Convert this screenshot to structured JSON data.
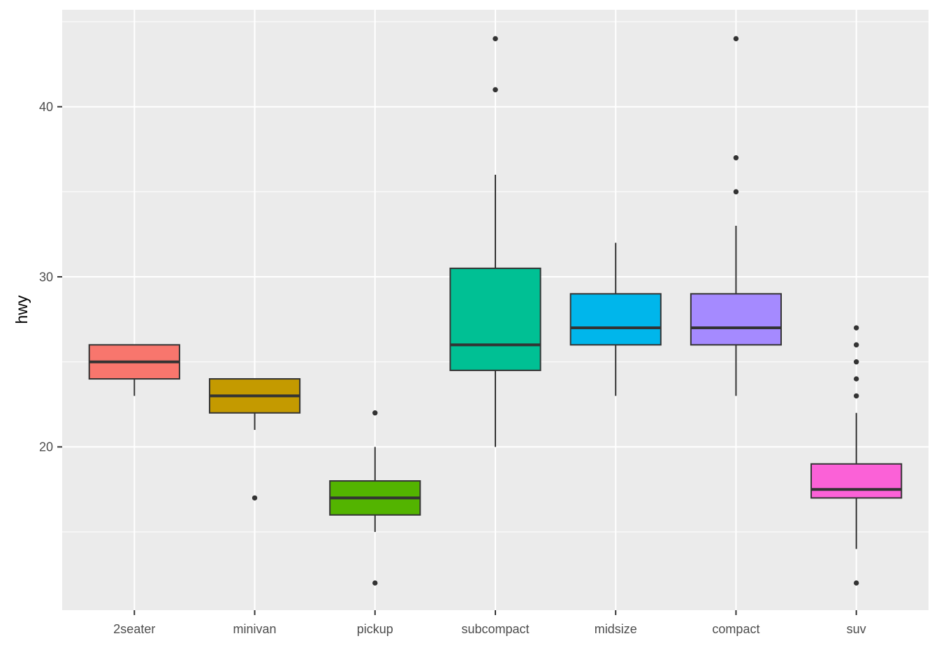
{
  "chart_data": {
    "type": "boxplot",
    "title": "",
    "ylabel": "hwy",
    "xlabel": "",
    "legend": "none",
    "grid": true,
    "panel_background": "#EBEBEB",
    "grid_color": "#FFFFFF",
    "box_border_color": "#333333",
    "outlier_color": "#333333",
    "tick_color": "#333333",
    "axis_text_color": "#4D4D4D",
    "axis_title_color": "#000000",
    "y_axis": {
      "ticks": [
        20,
        30,
        40
      ],
      "minor_ticks": [
        15,
        25,
        35,
        45
      ],
      "ylim": [
        10.4,
        45.7
      ]
    },
    "categories": [
      "2seater",
      "minivan",
      "pickup",
      "subcompact",
      "midsize",
      "compact",
      "suv"
    ],
    "series": [
      {
        "category": "2seater",
        "fill": "#F8766D",
        "whisker_low": 23,
        "q1": 24,
        "median": 25,
        "q3": 26,
        "whisker_high": 26,
        "outliers": []
      },
      {
        "category": "minivan",
        "fill": "#C49A00",
        "whisker_low": 21,
        "q1": 22,
        "median": 23,
        "q3": 24,
        "whisker_high": 24,
        "outliers": [
          17
        ]
      },
      {
        "category": "pickup",
        "fill": "#53B400",
        "whisker_low": 15,
        "q1": 16,
        "median": 17,
        "q3": 18,
        "whisker_high": 20,
        "outliers": [
          22,
          12
        ]
      },
      {
        "category": "subcompact",
        "fill": "#00C094",
        "whisker_low": 20,
        "q1": 24.5,
        "median": 26,
        "q3": 30.5,
        "whisker_high": 36,
        "outliers": [
          44,
          41
        ]
      },
      {
        "category": "midsize",
        "fill": "#00B6EB",
        "whisker_low": 23,
        "q1": 26,
        "median": 27,
        "q3": 29,
        "whisker_high": 32,
        "outliers": []
      },
      {
        "category": "compact",
        "fill": "#A58AFF",
        "whisker_low": 23,
        "q1": 26,
        "median": 27,
        "q3": 29,
        "whisker_high": 33,
        "outliers": [
          44,
          37,
          35
        ]
      },
      {
        "category": "suv",
        "fill": "#FB61D7",
        "whisker_low": 14,
        "q1": 17,
        "median": 17.5,
        "q3": 19,
        "whisker_high": 22,
        "outliers": [
          27,
          26,
          25,
          24,
          23,
          12
        ]
      }
    ]
  }
}
